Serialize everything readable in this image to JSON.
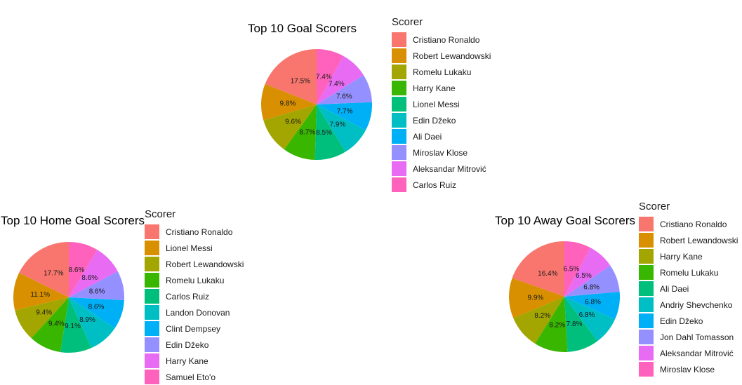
{
  "palette": [
    "#F8766D",
    "#D89000",
    "#A3A500",
    "#39B600",
    "#00BF7D",
    "#00BFC4",
    "#00B0F6",
    "#9590FF",
    "#E76BF3",
    "#FF62BC"
  ],
  "chart_data": [
    {
      "type": "pie",
      "title": "Top 10 Goal Scorers",
      "legend_title": "Scorer",
      "legend_position": "right",
      "categories": [
        "Cristiano Ronaldo",
        "Robert Lewandowski",
        "Romelu Lukaku",
        "Harry Kane",
        "Lionel Messi",
        "Edin Džeko",
        "Ali Daei",
        "Miroslav Klose",
        "Aleksandar Mitrović",
        "Carlos Ruiz"
      ],
      "values": [
        17.5,
        9.8,
        9.6,
        8.7,
        8.5,
        7.9,
        7.7,
        7.6,
        7.4,
        7.4
      ],
      "labels": [
        "17.5%",
        "9.8%",
        "9.6%",
        "8.7%",
        "8.5%",
        "7.9%",
        "7.7%",
        "7.6%",
        "7.4%",
        "7.4%"
      ]
    },
    {
      "type": "pie",
      "title": "Top 10 Home Goal Scorers",
      "legend_title": "Scorer",
      "legend_position": "right",
      "categories": [
        "Cristiano Ronaldo",
        "Lionel Messi",
        "Robert Lewandowski",
        "Romelu Lukaku",
        "Carlos Ruiz",
        "Landon Donovan",
        "Clint Dempsey",
        "Edin Džeko",
        "Harry Kane",
        "Samuel Eto'o"
      ],
      "values": [
        17.7,
        11.1,
        9.4,
        9.4,
        9.1,
        8.9,
        8.6,
        8.6,
        8.6,
        8.6
      ],
      "labels": [
        "17.7%",
        "11.1%",
        "9.4%",
        "9.4%",
        "9.1%",
        "8.9%",
        "8.6%",
        "8.6%",
        "8.6%",
        "8.6%"
      ]
    },
    {
      "type": "pie",
      "title": "Top 10 Away Goal Scorers",
      "legend_title": "Scorer",
      "legend_position": "right",
      "categories": [
        "Cristiano Ronaldo",
        "Robert Lewandowski",
        "Harry Kane",
        "Romelu Lukaku",
        "Ali Daei",
        "Andriy Shevchenko",
        "Edin Džeko",
        "Jon Dahl Tomasson",
        "Aleksandar Mitrović",
        "Miroslav Klose"
      ],
      "values": [
        16.4,
        9.9,
        8.2,
        8.2,
        7.8,
        6.8,
        6.8,
        6.8,
        6.5,
        6.5
      ],
      "labels": [
        "16.4%",
        "9.9%",
        "8.2%",
        "8.2%",
        "7.8%",
        "6.8%",
        "6.8%",
        "6.8%",
        "6.5%",
        "6.5%"
      ]
    }
  ]
}
